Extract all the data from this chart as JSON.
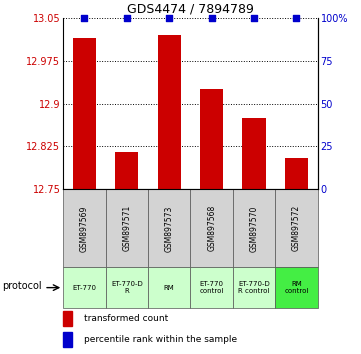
{
  "title": "GDS4474 / 7894789",
  "samples": [
    "GSM897569",
    "GSM897571",
    "GSM897573",
    "GSM897568",
    "GSM897570",
    "GSM897572"
  ],
  "bar_values": [
    13.015,
    12.815,
    13.02,
    12.925,
    12.875,
    12.805
  ],
  "percentile_values": [
    100,
    100,
    100,
    100,
    100,
    100
  ],
  "ylim": [
    12.75,
    13.05
  ],
  "yticks": [
    12.75,
    12.825,
    12.9,
    12.975,
    13.05
  ],
  "ytick_labels": [
    "12.75",
    "12.825",
    "12.9",
    "12.975",
    "13.05"
  ],
  "right_yticks": [
    0,
    25,
    50,
    75,
    100
  ],
  "right_ytick_labels": [
    "0",
    "25",
    "50",
    "75",
    "100%"
  ],
  "bar_color": "#cc0000",
  "percentile_color": "#0000cc",
  "protocols": [
    "ET-770",
    "ET-770-D\nR",
    "RM",
    "ET-770\ncontrol",
    "ET-770-D\nR control",
    "RM\ncontrol"
  ],
  "protocol_label": "protocol",
  "legend_bar": "transformed count",
  "legend_pct": "percentile rank within the sample",
  "proto_colors": [
    "#ccffcc",
    "#ccffcc",
    "#ccffcc",
    "#ccffcc",
    "#ccffcc",
    "#44ee44"
  ],
  "sample_bg": "#d3d3d3",
  "white_bg": "#ffffff"
}
